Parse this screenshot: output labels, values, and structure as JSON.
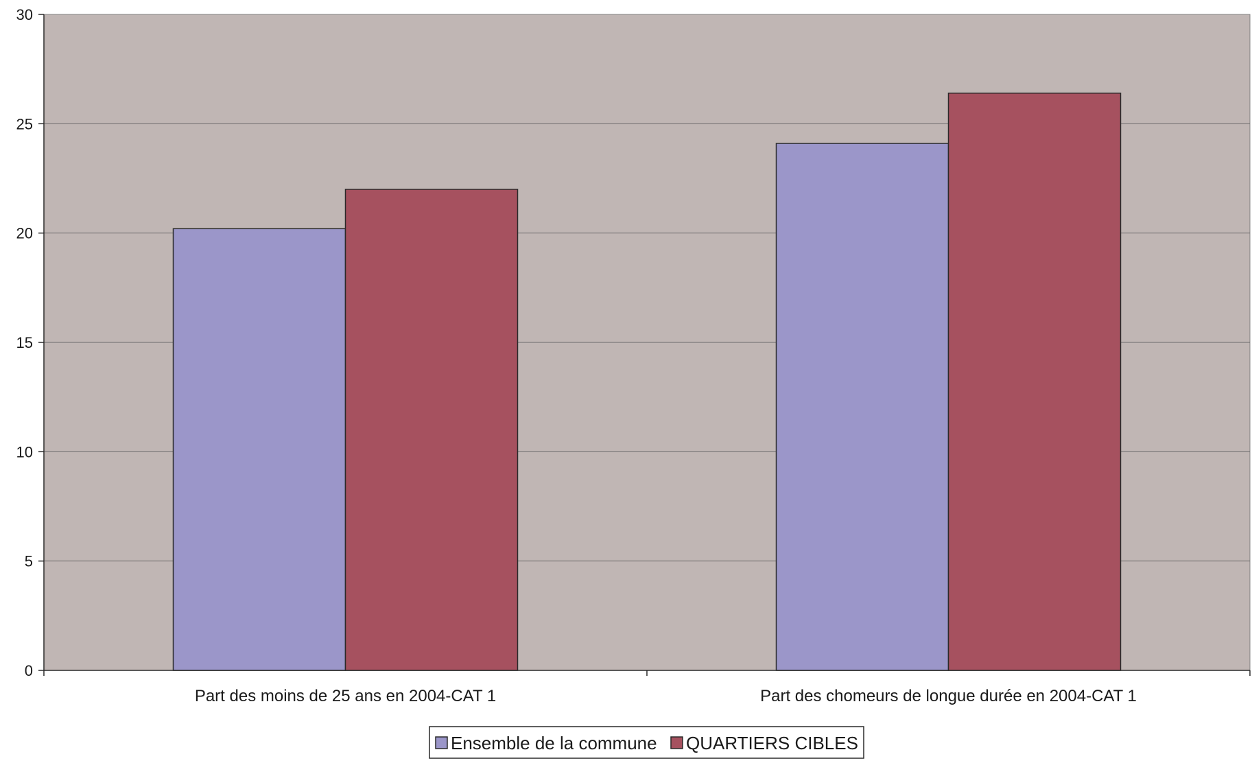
{
  "chart_data": {
    "type": "bar",
    "title": "",
    "xlabel": "",
    "ylabel": "",
    "categories": [
      "Part des moins de 25 ans en 2004-CAT 1",
      "Part des chomeurs de longue durée en 2004-CAT 1"
    ],
    "series": [
      {
        "name": "Ensemble de la commune",
        "values": [
          20.2,
          24.1
        ],
        "color": "#9b96c9"
      },
      {
        "name": "QUARTIERS CIBLES",
        "values": [
          22.0,
          26.4
        ],
        "color": "#a6515f"
      }
    ],
    "ylim": [
      0,
      30
    ],
    "yticks": [
      0,
      5,
      10,
      15,
      20,
      25,
      30
    ],
    "grid": true,
    "legend_position": "bottom",
    "plot_background": "#c0b6b4",
    "gridline_color": "#6b6b6b"
  }
}
